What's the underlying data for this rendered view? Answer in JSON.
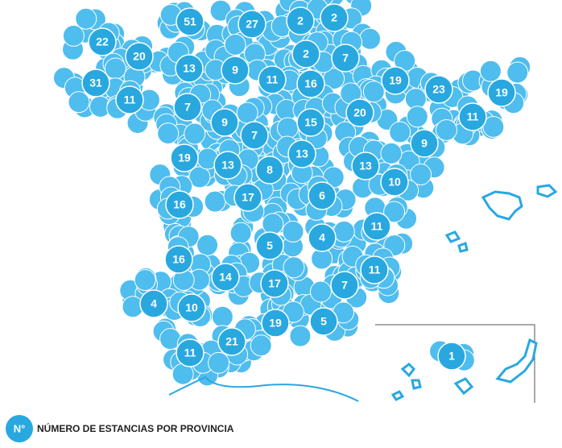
{
  "legend": {
    "symbol": "N°",
    "text": "NÚMERO DE ESTANCIAS POR PROVINCIA"
  },
  "provinces": [
    51,
    27,
    2,
    2,
    22,
    20,
    13,
    9,
    11,
    2,
    7,
    16,
    19,
    23,
    19,
    31,
    11,
    7,
    9,
    7,
    15,
    20,
    11,
    9,
    19,
    13,
    8,
    13,
    13,
    10,
    16,
    17,
    6,
    11,
    5,
    4,
    16,
    14,
    17,
    7,
    11,
    4,
    10,
    19,
    5,
    21,
    11,
    1
  ]
}
